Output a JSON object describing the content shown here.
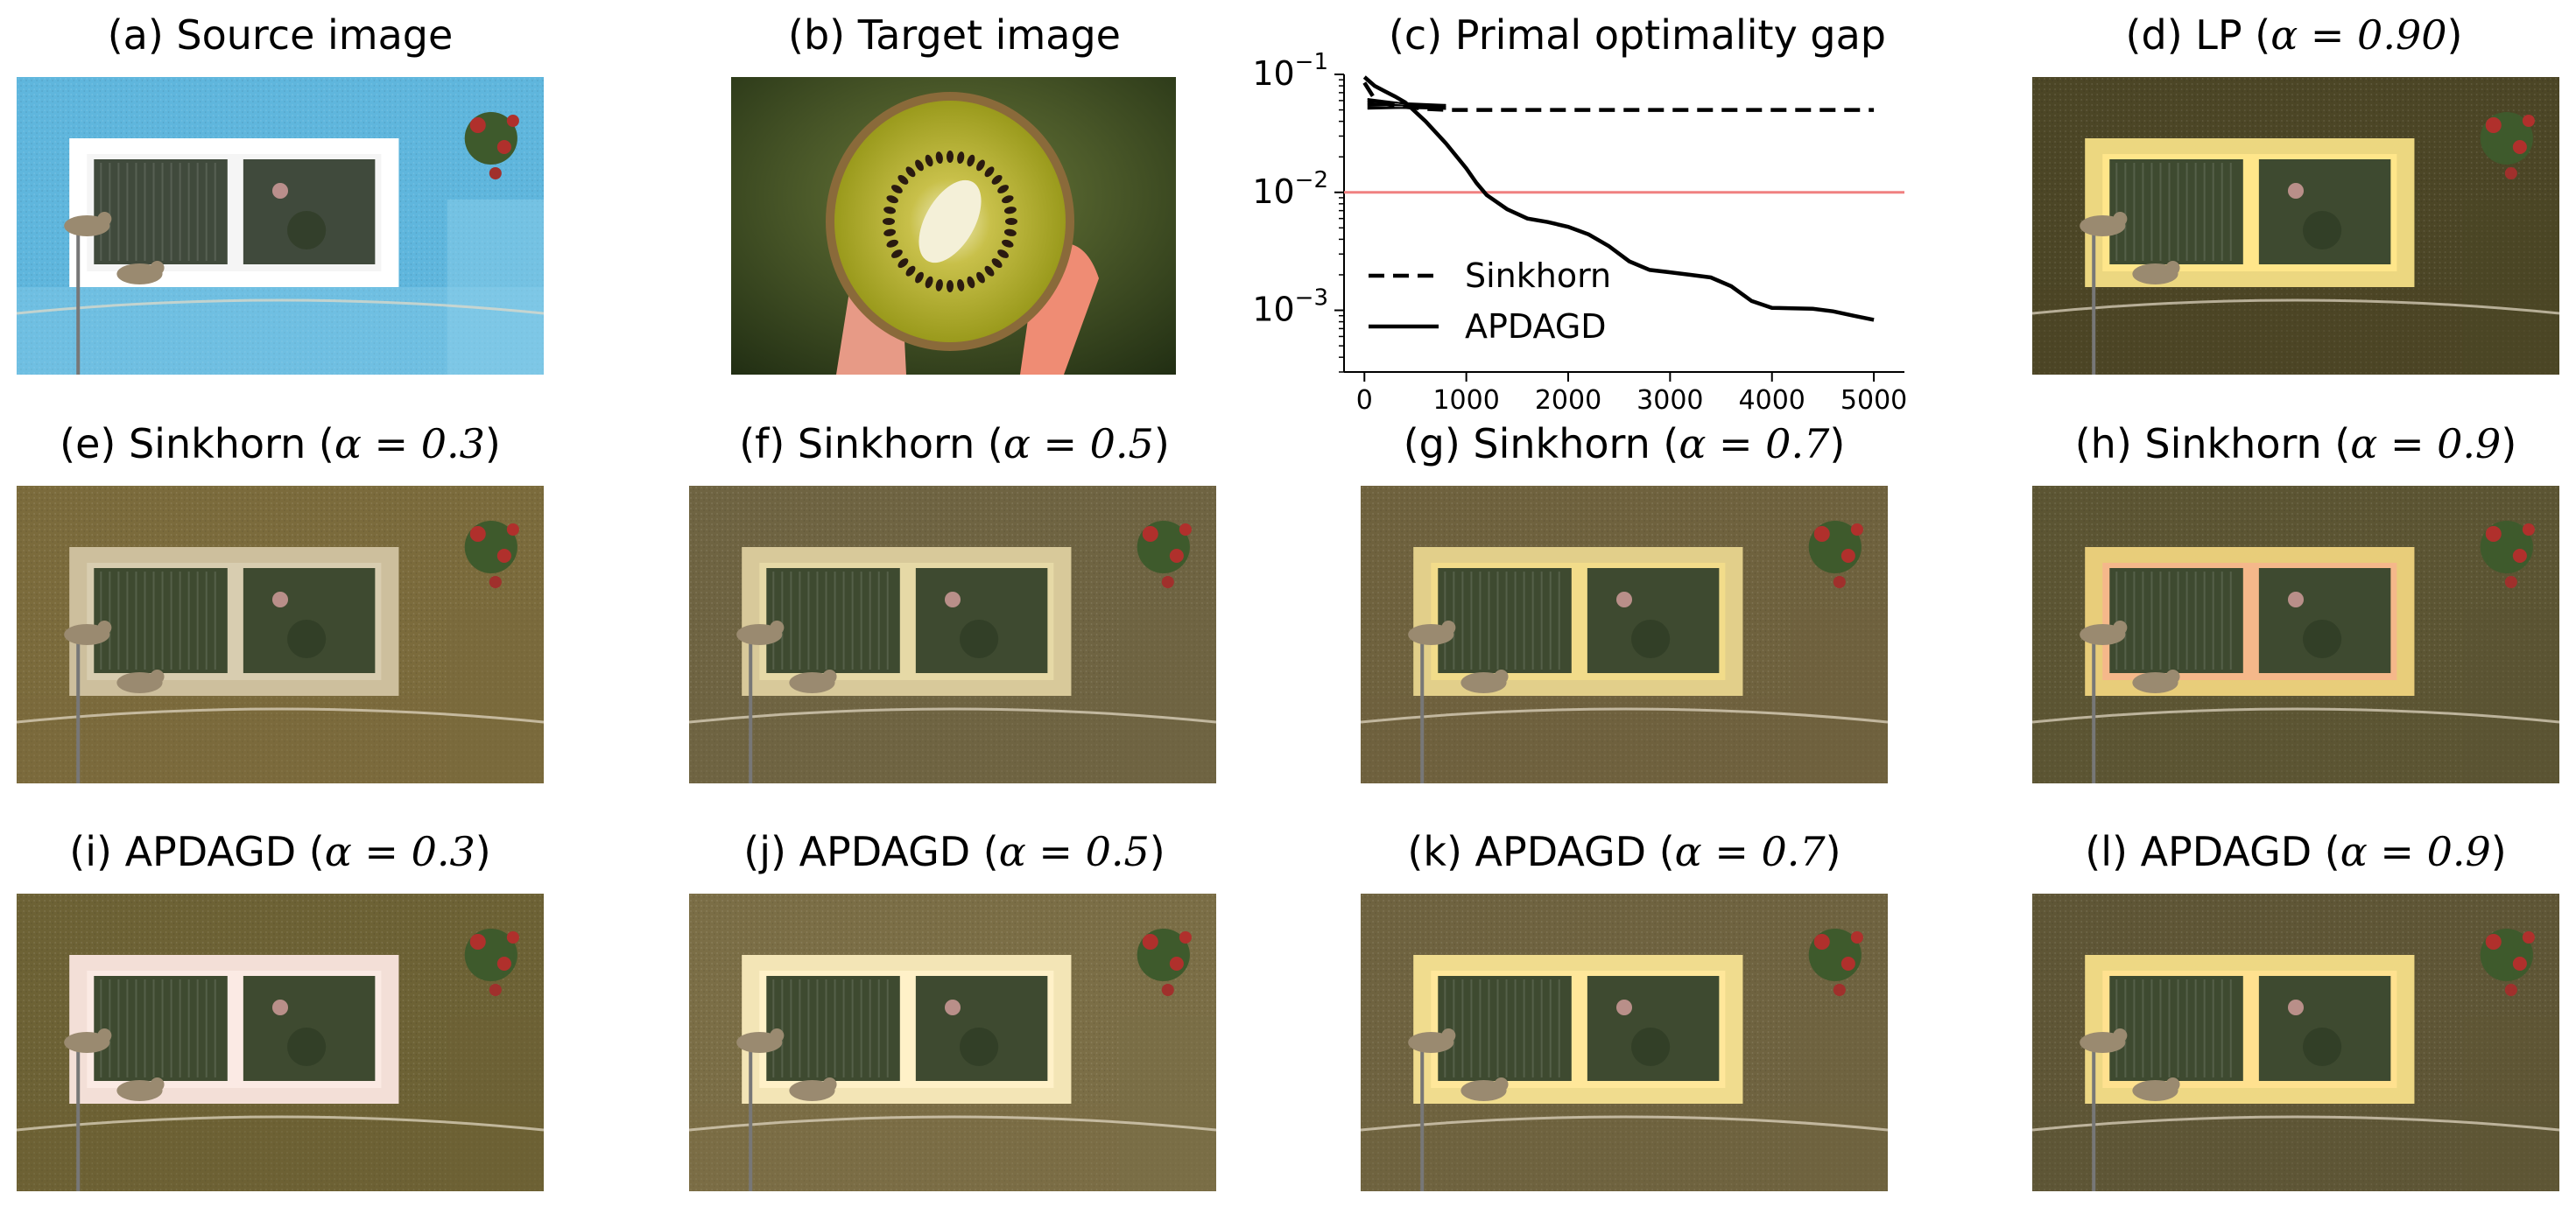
{
  "panels": [
    {
      "id": "a",
      "caption": "(a) Source image",
      "kind": "source",
      "bg": "#5fb6dd"
    },
    {
      "id": "b",
      "caption": "(b) Target image",
      "kind": "target",
      "bg": "#3c4a20"
    },
    {
      "id": "c",
      "caption": "(c) Primal optimality gap",
      "kind": "chart"
    },
    {
      "id": "d",
      "caption": "(d) LP (",
      "alpha": "α = 0.90",
      "kind": "recolor",
      "bg": "#4c4626",
      "frame": "#ecd780",
      "accent": "#ffe68a"
    },
    {
      "id": "e",
      "caption": "(e) Sinkhorn (",
      "alpha": "α = 0.3",
      "kind": "recolor",
      "bg": "#7b6b3c",
      "frame": "#cdbf9d",
      "accent": "#d8cdb0"
    },
    {
      "id": "f",
      "caption": "(f) Sinkhorn (",
      "alpha": "α = 0.5",
      "kind": "recolor",
      "bg": "#6f6442",
      "frame": "#d8c99a",
      "accent": "#e6d9a6"
    },
    {
      "id": "g",
      "caption": "(g) Sinkhorn (",
      "alpha": "α = 0.7",
      "kind": "recolor",
      "bg": "#6f623e",
      "frame": "#e2cf8a",
      "accent": "#f2dc8a"
    },
    {
      "id": "h",
      "caption": "(h) Sinkhorn (",
      "alpha": "α = 0.9",
      "kind": "recolor",
      "bg": "#5c5533",
      "frame": "#e8cd7a",
      "accent": "#f5b88a"
    },
    {
      "id": "i",
      "caption": "(i) APDAGD (",
      "alpha": "α = 0.3",
      "kind": "recolor",
      "bg": "#6d6235",
      "frame": "#f3dfd7",
      "accent": "#fbeae4"
    },
    {
      "id": "j",
      "caption": "(j) APDAGD (",
      "alpha": "α = 0.5",
      "kind": "recolor",
      "bg": "#7b6e46",
      "frame": "#f3e5b6",
      "accent": "#fff1c8"
    },
    {
      "id": "k",
      "caption": "(k) APDAGD (",
      "alpha": "α = 0.7",
      "kind": "recolor",
      "bg": "#6f6340",
      "frame": "#f0dc8e",
      "accent": "#ffe79a"
    },
    {
      "id": "l",
      "caption": "(l) APDAGD (",
      "alpha": "α = 0.9",
      "kind": "recolor",
      "bg": "#5f5636",
      "frame": "#eed884",
      "accent": "#ffe18f"
    }
  ],
  "chart_data": {
    "type": "line",
    "title": "(c) Primal optimality gap",
    "xlabel": "",
    "ylabel": "",
    "yscale": "log",
    "xlim": [
      -200,
      5300
    ],
    "ylim": [
      0.0003,
      0.1
    ],
    "x_ticks": [
      0,
      1000,
      2000,
      3000,
      4000,
      5000
    ],
    "y_ticks": [
      0.001,
      0.01,
      0.1
    ],
    "y_tick_labels": [
      {
        "base": "10",
        "exp": "−3"
      },
      {
        "base": "10",
        "exp": "−2"
      },
      {
        "base": "10",
        "exp": "−1"
      }
    ],
    "reference_line": {
      "y": 0.01,
      "color": "#f08080"
    },
    "legend": {
      "placement": "lower-left"
    },
    "series": [
      {
        "name": "Sinkhorn",
        "style": "dashed",
        "color": "#000000",
        "x": [
          0,
          100,
          200,
          400,
          600,
          800,
          1000,
          2000,
          3000,
          4000,
          5000
        ],
        "y": [
          0.085,
          0.062,
          0.056,
          0.053,
          0.051,
          0.05,
          0.05,
          0.05,
          0.05,
          0.05,
          0.05
        ]
      },
      {
        "name": "APDAGD",
        "style": "solid",
        "color": "#000000",
        "x": [
          0,
          100,
          200,
          300,
          400,
          600,
          800,
          1000,
          1100,
          1200,
          1400,
          1600,
          1800,
          2000,
          2200,
          2400,
          2600,
          2800,
          3000,
          3200,
          3400,
          3600,
          3800,
          4000,
          4200,
          4400,
          4600,
          4800,
          5000
        ],
        "y": [
          0.095,
          0.08,
          0.072,
          0.065,
          0.058,
          0.04,
          0.026,
          0.016,
          0.012,
          0.0095,
          0.0072,
          0.006,
          0.0056,
          0.0051,
          0.0044,
          0.0035,
          0.0026,
          0.0022,
          0.0021,
          0.002,
          0.0019,
          0.0016,
          0.0012,
          0.00105,
          0.00104,
          0.00103,
          0.00098,
          0.0009,
          0.00083
        ]
      }
    ]
  }
}
